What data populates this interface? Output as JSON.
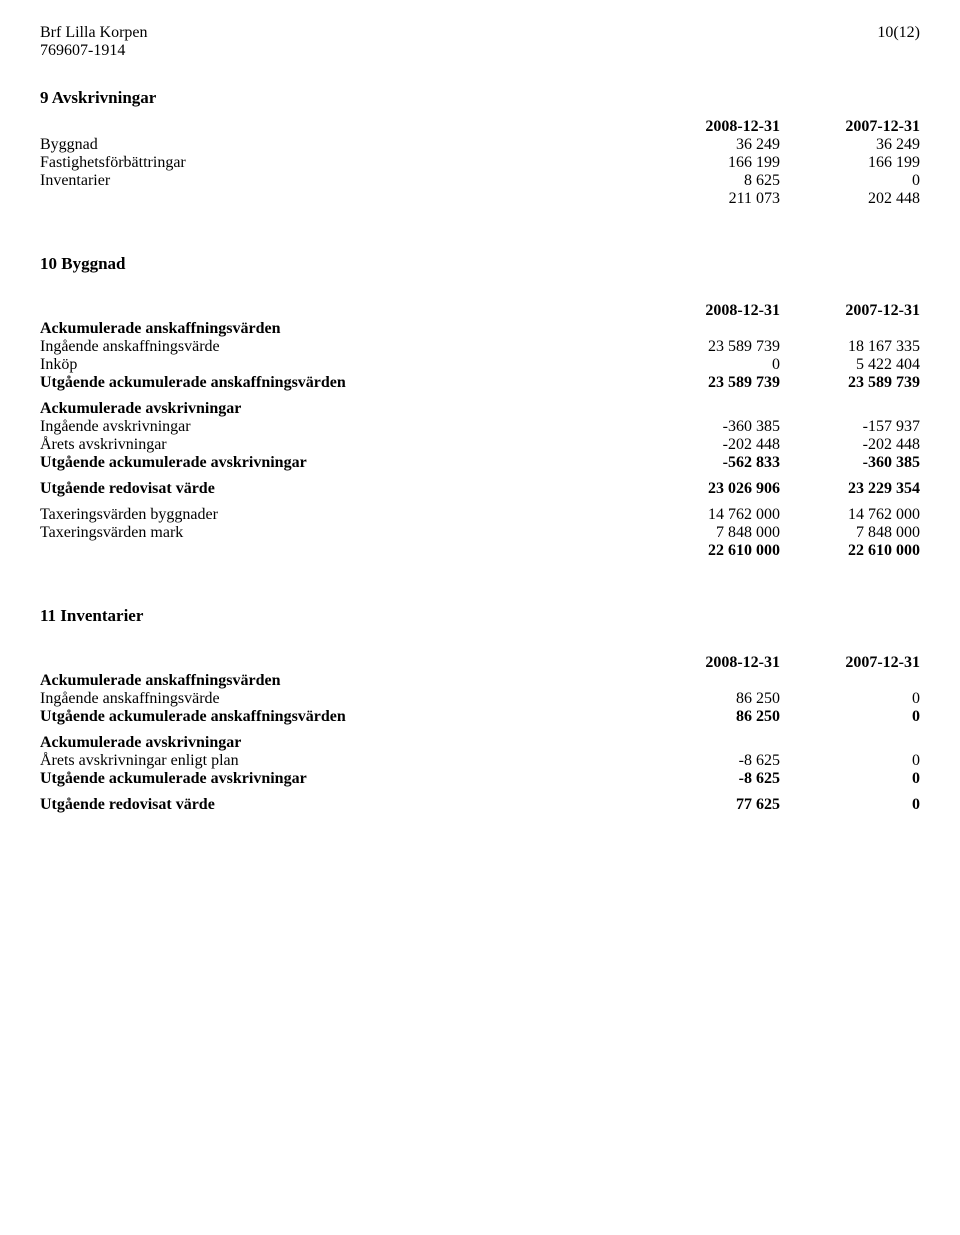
{
  "header": {
    "org_name": "Brf Lilla Korpen",
    "org_number": "769607-1914",
    "page_indicator": "10(12)"
  },
  "section9": {
    "title": "9 Avskrivningar",
    "col1": "2008-12-31",
    "col2": "2007-12-31",
    "rows": [
      {
        "label": "Byggnad",
        "v1": "36 249",
        "v2": "36 249"
      },
      {
        "label": "Fastighetsförbättringar",
        "v1": "166 199",
        "v2": "166 199"
      },
      {
        "label": "Inventarier",
        "v1": "8 625",
        "v2": "0"
      }
    ],
    "total": {
      "label": "",
      "v1": "211 073",
      "v2": "202 448"
    }
  },
  "section10": {
    "title": "10 Byggnad",
    "col1": "2008-12-31",
    "col2": "2007-12-31",
    "group1_title": "Ackumulerade anskaffningsvärden",
    "group1_rows": [
      {
        "label": "Ingående anskaffningsvärde",
        "v1": "23 589 739",
        "v2": "18 167 335"
      },
      {
        "label": "Inköp",
        "v1": "0",
        "v2": "5 422 404"
      }
    ],
    "group1_total": {
      "label": "Utgående ackumulerade anskaffningsvärden",
      "v1": "23 589 739",
      "v2": "23 589 739"
    },
    "group2_title": "Ackumulerade avskrivningar",
    "group2_rows": [
      {
        "label": "Ingående avskrivningar",
        "v1": "-360 385",
        "v2": "-157 937"
      },
      {
        "label": "Årets avskrivningar",
        "v1": "-202 448",
        "v2": "-202 448"
      }
    ],
    "group2_total": {
      "label": "Utgående ackumulerade avskrivningar",
      "v1": "-562 833",
      "v2": "-360 385"
    },
    "redovisat": {
      "label": "Utgående redovisat värde",
      "v1": "23 026 906",
      "v2": "23 229 354"
    },
    "tax_rows": [
      {
        "label": "Taxeringsvärden byggnader",
        "v1": "14 762 000",
        "v2": "14 762 000"
      },
      {
        "label": "Taxeringsvärden mark",
        "v1": "7 848 000",
        "v2": "7 848 000"
      }
    ],
    "tax_total": {
      "label": "",
      "v1": "22 610 000",
      "v2": "22 610 000"
    }
  },
  "section11": {
    "title": "11 Inventarier",
    "col1": "2008-12-31",
    "col2": "2007-12-31",
    "group1_title": "Ackumulerade anskaffningsvärden",
    "group1_rows": [
      {
        "label": "Ingående anskaffningsvärde",
        "v1": "86 250",
        "v2": "0"
      }
    ],
    "group1_total": {
      "label": "Utgående ackumulerade anskaffningsvärden",
      "v1": "86 250",
      "v2": "0"
    },
    "group2_title": "Ackumulerade avskrivningar",
    "group2_rows": [
      {
        "label": "Årets avskrivningar enligt plan",
        "v1": "-8 625",
        "v2": "0"
      }
    ],
    "group2_total": {
      "label": "Utgående ackumulerade avskrivningar",
      "v1": "-8 625",
      "v2": "0"
    },
    "redovisat": {
      "label": "Utgående redovisat värde",
      "v1": "77 625",
      "v2": "0"
    }
  }
}
